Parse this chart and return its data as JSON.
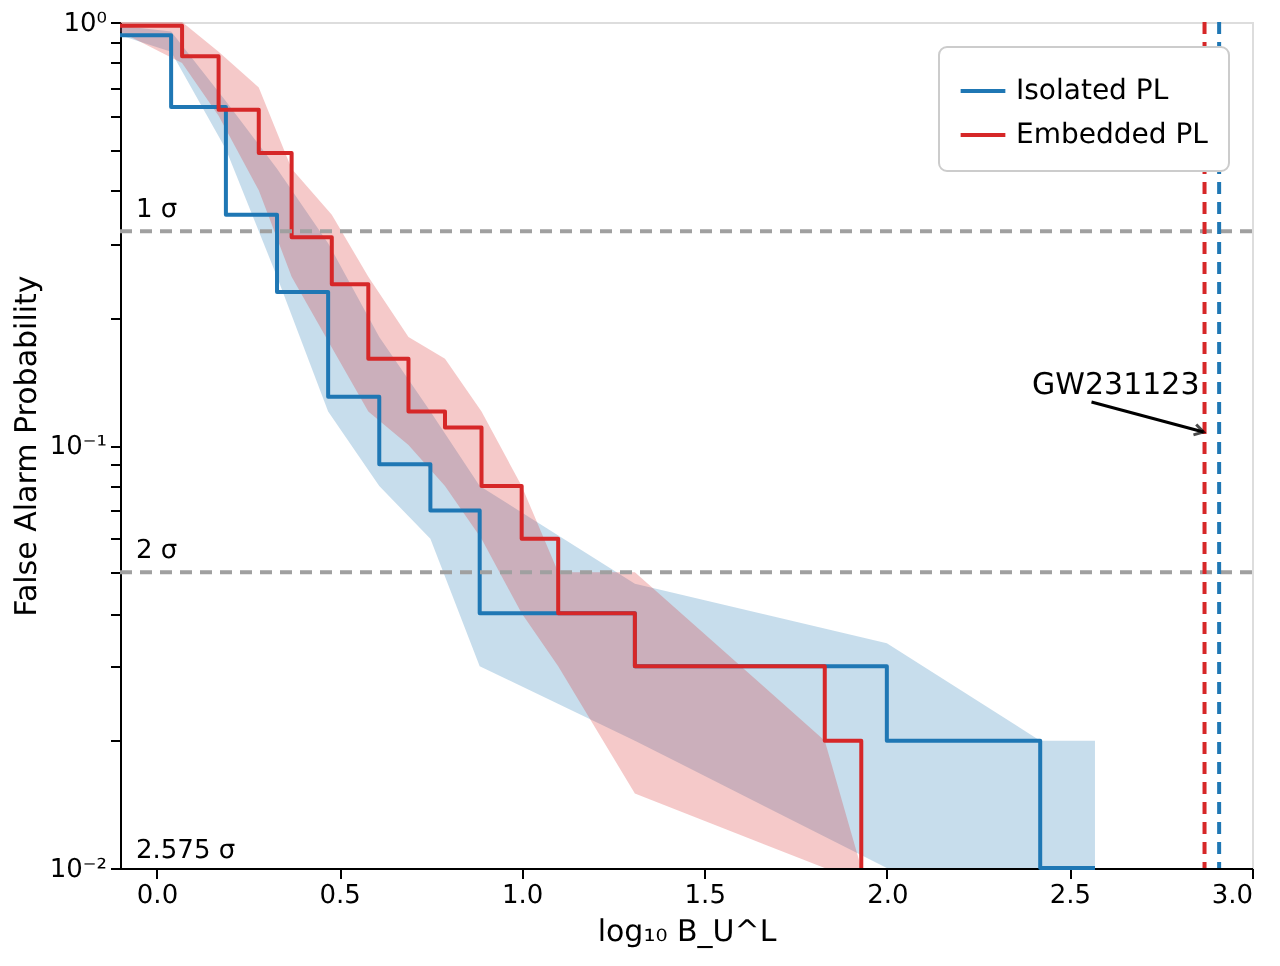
{
  "chart_data": {
    "type": "step",
    "xlabel": "log₁₀ B_U^L",
    "ylabel": "False Alarm Probability",
    "xlim": [
      -0.1,
      3.0
    ],
    "xticks": [
      {
        "value": 0,
        "label": "0.0"
      },
      0.5,
      {
        "value": 1,
        "label": "1.0"
      },
      1.5,
      {
        "value": 2,
        "label": "2.0"
      },
      2.5,
      {
        "value": 3,
        "label": "3.0"
      }
    ],
    "ylim": [
      0.01,
      1
    ],
    "log": true,
    "yticks": [
      {
        "value": 0.01,
        "label": "10⁻²"
      },
      {
        "value": 0.02,
        "label": null
      },
      {
        "value": 0.03,
        "label": null
      },
      {
        "value": 0.04,
        "label": null
      },
      {
        "value": 0.05,
        "label": null
      },
      {
        "value": 0.06,
        "label": null
      },
      {
        "value": 0.07,
        "label": null
      },
      {
        "value": 0.08,
        "label": null
      },
      {
        "value": 0.09,
        "label": null
      },
      {
        "value": 0.1,
        "label": "10⁻¹"
      },
      {
        "value": 0.2,
        "label": null
      },
      {
        "value": 0.3,
        "label": null
      },
      {
        "value": 0.4,
        "label": null
      },
      {
        "value": 0.5,
        "label": null
      },
      {
        "value": 0.6,
        "label": null
      },
      {
        "value": 0.7,
        "label": null
      },
      {
        "value": 0.8,
        "label": null
      },
      {
        "value": 0.9,
        "label": null
      },
      {
        "value": 1,
        "label": "10⁰"
      }
    ],
    "grid": false,
    "legend": "top right",
    "marker": "none",
    "line_style": "solid",
    "series": [
      {
        "name": "Isolated PL",
        "color": "#1f77b4",
        "x": [
          -0.1,
          0.04,
          0.19,
          0.33,
          0.47,
          0.61,
          0.75,
          0.885,
          1.31,
          2.0,
          2.42,
          2.57
        ],
        "values": [
          0.93,
          0.63,
          0.35,
          0.23,
          0.13,
          0.09,
          0.07,
          0.04,
          0.03,
          0.02,
          0.01,
          0.01
        ],
        "lower": [
          0.93,
          0.85,
          0.5,
          0.25,
          0.12,
          0.08,
          0.06,
          0.03,
          0.02,
          0.01,
          0.01,
          0.01
        ],
        "upper": [
          0.98,
          0.95,
          0.65,
          0.45,
          0.3,
          0.18,
          0.12,
          0.08,
          0.047,
          0.034,
          0.02,
          0.02
        ]
      },
      {
        "name": "Embedded PL",
        "color": "#d62728",
        "x": [
          -0.1,
          0.07,
          0.17,
          0.28,
          0.37,
          0.48,
          0.58,
          0.69,
          0.79,
          0.89,
          1.0,
          1.1,
          1.31,
          1.83,
          1.93
        ],
        "values": [
          0.98,
          0.83,
          0.62,
          0.49,
          0.31,
          0.24,
          0.16,
          0.12,
          0.11,
          0.08,
          0.06,
          0.04,
          0.03,
          0.02,
          0.01
        ],
        "lower": [
          0.95,
          0.8,
          0.6,
          0.4,
          0.25,
          0.17,
          0.12,
          0.1,
          0.08,
          0.06,
          0.04,
          0.03,
          0.015,
          0.01,
          0.01
        ],
        "upper": [
          1,
          1,
          0.85,
          0.7,
          0.45,
          0.35,
          0.25,
          0.18,
          0.16,
          0.12,
          0.08,
          0.05,
          0.05,
          0.02,
          0.01
        ]
      }
    ],
    "ref_lines": [
      {
        "axis": "y",
        "value": 0.32,
        "label": "1 σ",
        "color": "#a0a0a0",
        "line_style": "dashed"
      },
      {
        "axis": "y",
        "value": 0.05,
        "label": "2 σ",
        "color": "#a0a0a0",
        "line_style": "dashed"
      },
      {
        "axis": "x",
        "value": 2.87,
        "color": "#d62728",
        "line_style": "dashed"
      },
      {
        "axis": "x",
        "value": 2.91,
        "color": "#1f77b4",
        "line_style": "dashed"
      }
    ],
    "annotations": [
      "2.575 σ",
      {
        "text": "GW231123",
        "x": 2.9,
        "y": 0.105
      }
    ]
  }
}
